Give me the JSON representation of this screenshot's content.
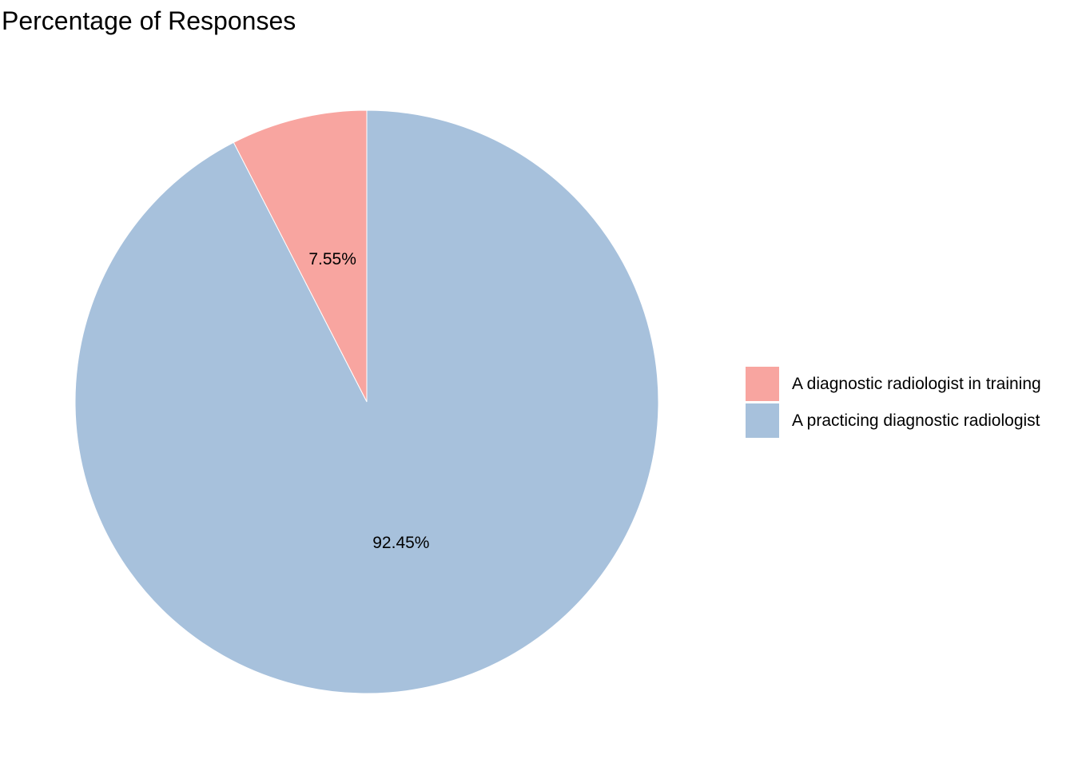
{
  "chart_data": {
    "type": "pie",
    "title": "Percentage of Responses",
    "slices": [
      {
        "label": "A diagnostic radiologist in training",
        "value": 7.55,
        "display": "7.55%",
        "color": "#F8A5A0"
      },
      {
        "label": "A practicing diagnostic radiologist",
        "value": 92.45,
        "display": "92.45%",
        "color": "#A7C1DC"
      }
    ],
    "legend_position": "right"
  }
}
